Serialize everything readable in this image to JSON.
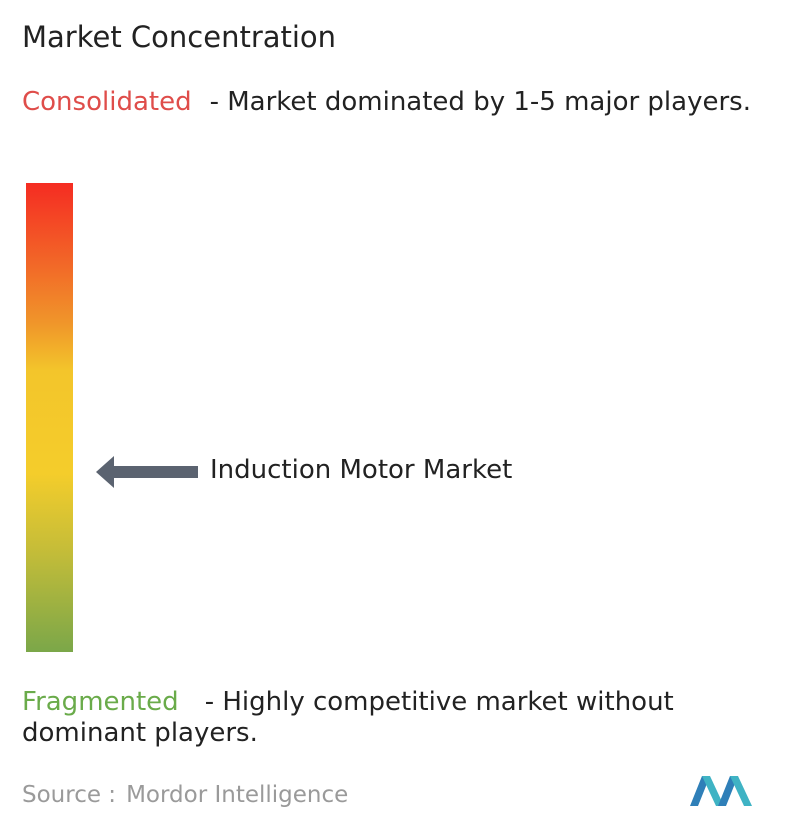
{
  "header": {
    "title": "Market Concentration"
  },
  "consolidated": {
    "label": "Consolidated",
    "description": "- Market dominated by 1-5 major players."
  },
  "marker": {
    "label": "Induction Motor Market"
  },
  "fragmented": {
    "label": "Fragmented",
    "description": "- Highly competitive market without dominant players."
  },
  "footer": {
    "source_label": "Source :",
    "source": "Mordor Intelligence"
  }
}
